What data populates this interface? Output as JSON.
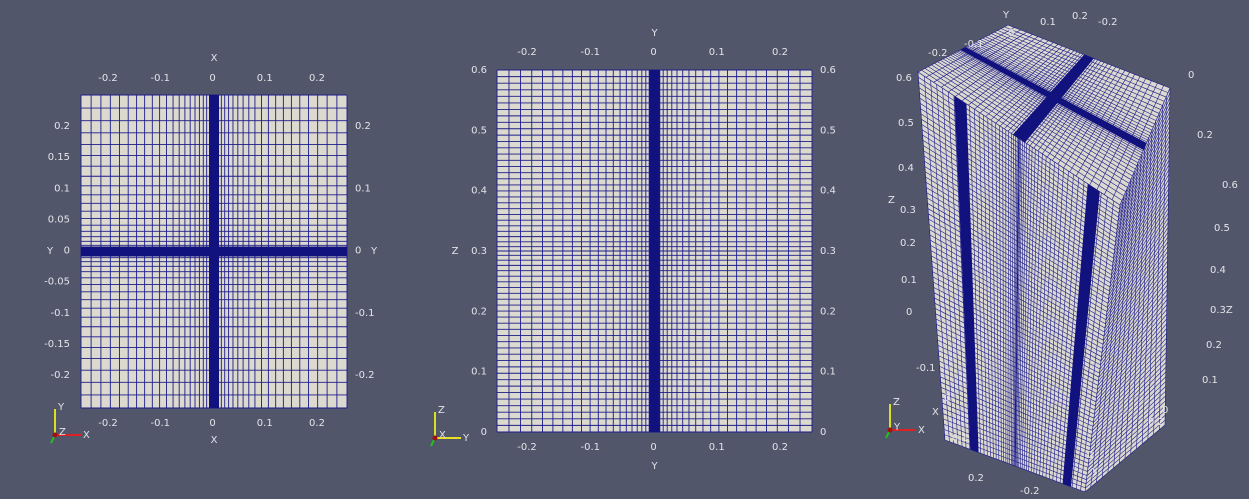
{
  "views": [
    {
      "top_title": "X",
      "top_ticks": [
        "-0.2",
        "-0.1",
        "0",
        "0.1",
        "0.2"
      ],
      "bottom_title": "X",
      "bottom_ticks": [
        "-0.2",
        "-0.1",
        "0",
        "0.1",
        "0.2"
      ],
      "left_title": "Y",
      "left_ticks": [
        "0.2",
        "0.15",
        "0.1",
        "0.05",
        "0",
        "-0.05",
        "-0.1",
        "-0.15",
        "-0.2"
      ],
      "right_title": "Y",
      "right_ticks": [
        "0.2",
        "0.1",
        "0",
        "-0.1",
        "-0.2"
      ],
      "triad": [
        "Y",
        "Z",
        "X"
      ]
    },
    {
      "top_title": "Y",
      "top_ticks": [
        "-0.2",
        "-0.1",
        "0",
        "0.1",
        "0.2"
      ],
      "bottom_title": "Y",
      "bottom_ticks": [
        "-0.2",
        "-0.1",
        "0",
        "0.1",
        "0.2"
      ],
      "left_title": "Z",
      "left_ticks": [
        "0.6",
        "0.5",
        "0.4",
        "0.3",
        "0.2",
        "0.1",
        "0"
      ],
      "right_ticks": [
        "0.6",
        "0.5",
        "0.4",
        "0.3",
        "0.2",
        "0.1",
        "0"
      ],
      "triad": [
        "Z",
        "X",
        "Y"
      ]
    },
    {
      "labels": [
        "Y",
        "-0.2",
        "-0.1",
        "0",
        "0.1",
        "0.2",
        "-0.2",
        "0",
        "0.2",
        "0.6",
        "0.5",
        "0.4",
        "Z",
        "0.3",
        "0.2",
        "0.1",
        "0",
        "-0.1",
        "X",
        "0",
        "0.1",
        "0.2",
        "0",
        "Y",
        "-0.2",
        "0.2",
        "0",
        "0.6",
        "0.5",
        "0.4",
        "0.3Z",
        "0.2",
        "0.1"
      ],
      "triad": [
        "Z",
        "Y",
        "X"
      ]
    }
  ]
}
